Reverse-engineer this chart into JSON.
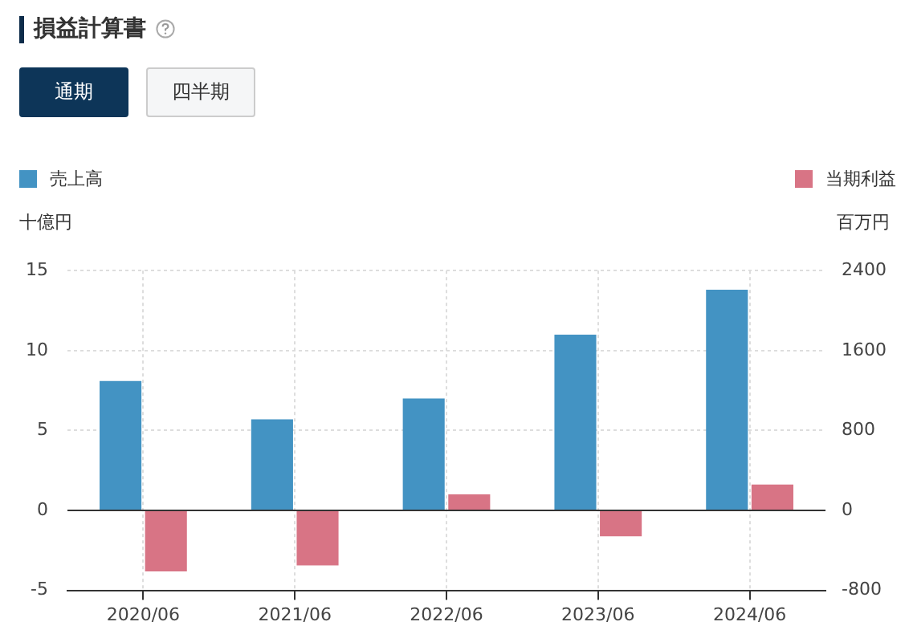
{
  "chart_data": {
    "type": "bar",
    "title": "損益計算書",
    "annotations": [
      "通期",
      "四半期"
    ],
    "ylabel": "十億円",
    "y2label": "百万円",
    "categories": [
      "2020/06",
      "2021/06",
      "2022/06",
      "2023/06",
      "2024/06"
    ],
    "series": [
      {
        "name": "売上高",
        "color": "#4393c3",
        "values": [
          8.1,
          5.7,
          7.0,
          11.0,
          13.8
        ]
      },
      {
        "name": "当期利益",
        "color": "#d87485",
        "axis": "y2",
        "values": [
          -610,
          -550,
          160,
          -260,
          260
        ]
      }
    ],
    "ylim": [
      -5,
      15
    ],
    "yticks": [
      -5,
      0,
      5,
      10,
      15
    ],
    "y2lim": [
      -800,
      2400
    ],
    "y2ticks": [
      -800,
      0,
      800,
      1600,
      2400
    ],
    "grid": true,
    "legend": "top"
  }
}
